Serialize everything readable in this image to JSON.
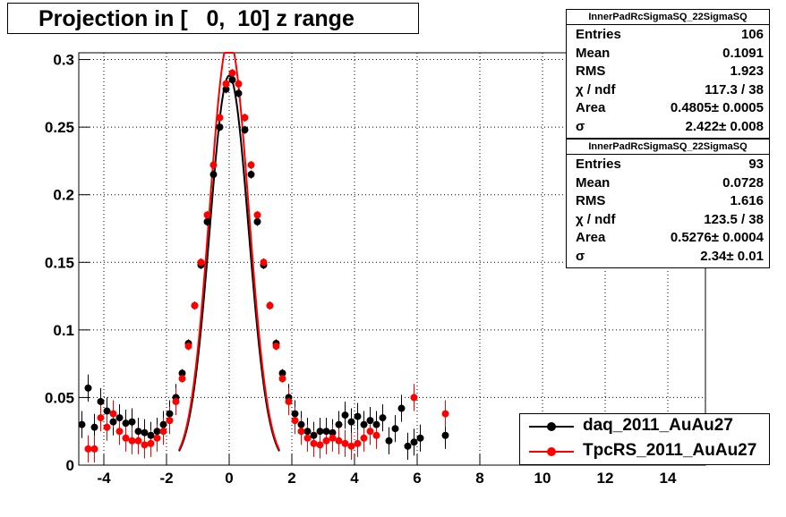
{
  "title": "Projection in [   0,  10] z range",
  "stats": [
    {
      "name": "InnerPadRcSigmaSQ_22SigmaSQ",
      "rows": [
        {
          "label": "Entries",
          "value": "106"
        },
        {
          "label": "Mean",
          "value": "0.1091"
        },
        {
          "label": "RMS",
          "value": "1.923"
        },
        {
          "label": "χ  / ndf",
          "value": "117.3 / 38"
        },
        {
          "label": "Area",
          "value": "0.4805± 0.0005"
        },
        {
          "label": "σ",
          "value": "2.422± 0.008"
        }
      ]
    },
    {
      "name": "InnerPadRcSigmaSQ_22SigmaSQ",
      "rows": [
        {
          "label": "Entries",
          "value": "93"
        },
        {
          "label": "Mean",
          "value": "0.0728"
        },
        {
          "label": "RMS",
          "value": "1.616"
        },
        {
          "label": "χ  / ndf",
          "value": "123.5 / 38"
        },
        {
          "label": "Area",
          "value": "0.5276± 0.0004"
        },
        {
          "label": "σ",
          "value": "2.34± 0.01"
        }
      ]
    }
  ],
  "legend": [
    {
      "label": "daq_2011_AuAu27",
      "color": "#000000"
    },
    {
      "label": "TpcRS_2011_AuAu27",
      "color": "#ff0000"
    }
  ],
  "chart_data": {
    "type": "scatter",
    "title": "Projection in [   0,  10] z range",
    "xlim": [
      -4.8,
      15.2
    ],
    "ylim": [
      0,
      0.305
    ],
    "x_ticks": [
      -4,
      -2,
      0,
      2,
      4,
      6,
      8,
      10,
      12,
      14
    ],
    "y_ticks": [
      0,
      0.05,
      0.1,
      0.15,
      0.2,
      0.25,
      0.3
    ],
    "grid": true,
    "series": [
      {
        "name": "daq_2011_AuAu27",
        "color": "#000000",
        "points": [
          [
            -4.7,
            0.03
          ],
          [
            -4.5,
            0.057
          ],
          [
            -4.3,
            0.028
          ],
          [
            -4.1,
            0.047
          ],
          [
            -3.9,
            0.04
          ],
          [
            -3.7,
            0.032
          ],
          [
            -3.5,
            0.035
          ],
          [
            -3.3,
            0.031
          ],
          [
            -3.1,
            0.032
          ],
          [
            -2.9,
            0.025
          ],
          [
            -2.7,
            0.024
          ],
          [
            -2.5,
            0.022
          ],
          [
            -2.3,
            0.025
          ],
          [
            -2.1,
            0.03
          ],
          [
            -1.9,
            0.038
          ],
          [
            -1.7,
            0.05
          ],
          [
            -1.5,
            0.068
          ],
          [
            -1.3,
            0.09
          ],
          [
            -1.1,
            0.118
          ],
          [
            -0.9,
            0.148
          ],
          [
            -0.7,
            0.18
          ],
          [
            -0.5,
            0.215
          ],
          [
            -0.3,
            0.25
          ],
          [
            -0.1,
            0.278
          ],
          [
            0.1,
            0.285
          ],
          [
            0.3,
            0.275
          ],
          [
            0.5,
            0.248
          ],
          [
            0.7,
            0.215
          ],
          [
            0.9,
            0.18
          ],
          [
            1.1,
            0.148
          ],
          [
            1.3,
            0.118
          ],
          [
            1.5,
            0.09
          ],
          [
            1.7,
            0.068
          ],
          [
            1.9,
            0.05
          ],
          [
            2.1,
            0.038
          ],
          [
            2.3,
            0.03
          ],
          [
            2.5,
            0.025
          ],
          [
            2.7,
            0.022
          ],
          [
            2.9,
            0.025
          ],
          [
            3.1,
            0.025
          ],
          [
            3.3,
            0.024
          ],
          [
            3.5,
            0.03
          ],
          [
            3.7,
            0.037
          ],
          [
            3.9,
            0.032
          ],
          [
            4.1,
            0.036
          ],
          [
            4.3,
            0.03
          ],
          [
            4.5,
            0.033
          ],
          [
            4.7,
            0.03
          ],
          [
            4.9,
            0.035
          ],
          [
            5.1,
            0.018
          ],
          [
            5.3,
            0.027
          ],
          [
            5.5,
            0.042
          ],
          [
            5.7,
            0.014
          ],
          [
            5.9,
            0.017
          ],
          [
            6.1,
            0.02
          ],
          [
            6.9,
            0.022
          ]
        ]
      },
      {
        "name": "TpcRS_2011_AuAu27",
        "color": "#ff0000",
        "points": [
          [
            -4.5,
            0.012
          ],
          [
            -4.3,
            0.012
          ],
          [
            -4.1,
            0.035
          ],
          [
            -3.9,
            0.028
          ],
          [
            -3.7,
            0.038
          ],
          [
            -3.5,
            0.025
          ],
          [
            -3.3,
            0.02
          ],
          [
            -3.1,
            0.018
          ],
          [
            -2.9,
            0.018
          ],
          [
            -2.7,
            0.015
          ],
          [
            -2.5,
            0.016
          ],
          [
            -2.3,
            0.02
          ],
          [
            -2.1,
            0.025
          ],
          [
            -1.9,
            0.033
          ],
          [
            -1.7,
            0.047
          ],
          [
            -1.5,
            0.064
          ],
          [
            -1.3,
            0.088
          ],
          [
            -1.1,
            0.118
          ],
          [
            -0.9,
            0.15
          ],
          [
            -0.7,
            0.185
          ],
          [
            -0.5,
            0.222
          ],
          [
            -0.3,
            0.257
          ],
          [
            -0.1,
            0.282
          ],
          [
            0.1,
            0.29
          ],
          [
            0.3,
            0.282
          ],
          [
            0.5,
            0.257
          ],
          [
            0.7,
            0.222
          ],
          [
            0.9,
            0.185
          ],
          [
            1.1,
            0.15
          ],
          [
            1.3,
            0.118
          ],
          [
            1.5,
            0.088
          ],
          [
            1.7,
            0.064
          ],
          [
            1.9,
            0.047
          ],
          [
            2.1,
            0.033
          ],
          [
            2.3,
            0.025
          ],
          [
            2.5,
            0.02
          ],
          [
            2.7,
            0.016
          ],
          [
            2.9,
            0.015
          ],
          [
            3.1,
            0.018
          ],
          [
            3.3,
            0.02
          ],
          [
            3.5,
            0.018
          ],
          [
            3.7,
            0.016
          ],
          [
            3.9,
            0.014
          ],
          [
            4.1,
            0.016
          ],
          [
            4.3,
            0.02
          ],
          [
            4.5,
            0.025
          ],
          [
            4.7,
            0.022
          ],
          [
            5.9,
            0.05
          ],
          [
            6.9,
            0.038
          ]
        ]
      }
    ],
    "fits": [
      {
        "color": "#000000",
        "peak": 0.288,
        "width": 0.62
      },
      {
        "color": "#ff0000",
        "peak": 0.315,
        "width": 0.62
      }
    ]
  }
}
